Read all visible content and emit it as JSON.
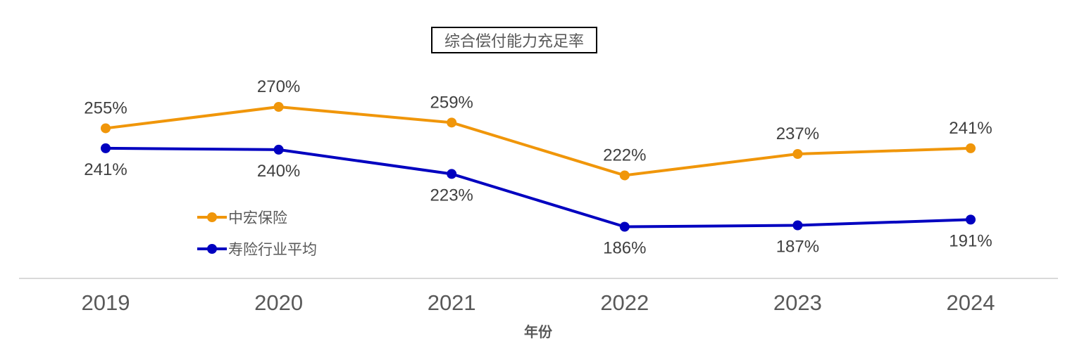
{
  "chart_data": {
    "type": "line",
    "title": "综合偿付能力充足率",
    "xlabel": "年份",
    "ylabel": "",
    "categories": [
      "2019",
      "2020",
      "2021",
      "2022",
      "2023",
      "2024"
    ],
    "series": [
      {
        "name": "中宏保险",
        "color": "#F0960A",
        "values": [
          255,
          270,
          259,
          222,
          237,
          241
        ],
        "labels": [
          "255%",
          "270%",
          "259%",
          "222%",
          "237%",
          "241%"
        ]
      },
      {
        "name": "寿险行业平均",
        "color": "#0000C0",
        "values": [
          241,
          240,
          223,
          186,
          187,
          191
        ],
        "labels": [
          "241%",
          "240%",
          "223%",
          "186%",
          "187%",
          "191%"
        ]
      }
    ],
    "legend_position": "left-inside",
    "grid": false,
    "data_labels": true
  },
  "legend": {
    "items": [
      {
        "label": "中宏保险",
        "color": "#F0960A"
      },
      {
        "label": "寿险行业平均",
        "color": "#0000C0"
      }
    ]
  }
}
